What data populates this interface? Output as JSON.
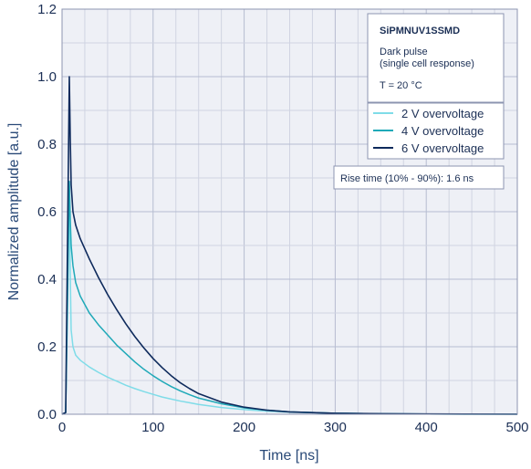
{
  "chart_data": {
    "type": "line",
    "xlabel": "Time [ns]",
    "ylabel": "Normalized amplitude [a.u.]",
    "xlim": [
      0,
      500
    ],
    "ylim": [
      0,
      1.2
    ],
    "x_ticks": [
      0,
      100,
      200,
      300,
      400,
      500
    ],
    "x_tick_labels": [
      "0",
      "100",
      "200",
      "300",
      "400",
      "500"
    ],
    "y_ticks": [
      0,
      0.2,
      0.4,
      0.6,
      0.8,
      1.0,
      1.2
    ],
    "y_tick_labels": [
      "0.0",
      "0.2",
      "0.4",
      "0.6",
      "0.8",
      "1.0",
      "1.2"
    ],
    "grid": true,
    "legend_position": "top-right",
    "info_box": {
      "title": "SiPMNUV1SSMD",
      "line1": "Dark pulse",
      "line2": "(single cell response)",
      "line3": "T = 20 °C"
    },
    "annotation": "Rise time (10% - 90%): 1.6 ns",
    "series": [
      {
        "name": "2 V overvoltage",
        "color": "#7fdce8",
        "points": [
          [
            0,
            0
          ],
          [
            4,
            0.005
          ],
          [
            6,
            0.3
          ],
          [
            8,
            0.68
          ],
          [
            9,
            0.42
          ],
          [
            10,
            0.25
          ],
          [
            12,
            0.2
          ],
          [
            15,
            0.175
          ],
          [
            20,
            0.16
          ],
          [
            30,
            0.14
          ],
          [
            40,
            0.124
          ],
          [
            50,
            0.11
          ],
          [
            60,
            0.098
          ],
          [
            70,
            0.086
          ],
          [
            80,
            0.076
          ],
          [
            90,
            0.067
          ],
          [
            100,
            0.059
          ],
          [
            110,
            0.051
          ],
          [
            120,
            0.045
          ],
          [
            130,
            0.039
          ],
          [
            140,
            0.034
          ],
          [
            150,
            0.029
          ],
          [
            175,
            0.02
          ],
          [
            200,
            0.014
          ],
          [
            225,
            0.009
          ],
          [
            250,
            0.006
          ],
          [
            300,
            0.003
          ],
          [
            350,
            0.0015
          ],
          [
            400,
            0.0008
          ],
          [
            450,
            0.0004
          ],
          [
            500,
            0.0002
          ]
        ]
      },
      {
        "name": "4 V overvoltage",
        "color": "#1fa9b8",
        "points": [
          [
            0,
            0
          ],
          [
            4,
            0.005
          ],
          [
            6,
            0.35
          ],
          [
            8,
            0.69
          ],
          [
            9,
            0.58
          ],
          [
            10,
            0.5
          ],
          [
            12,
            0.44
          ],
          [
            15,
            0.39
          ],
          [
            20,
            0.35
          ],
          [
            30,
            0.3
          ],
          [
            40,
            0.265
          ],
          [
            50,
            0.235
          ],
          [
            60,
            0.205
          ],
          [
            70,
            0.18
          ],
          [
            80,
            0.155
          ],
          [
            90,
            0.133
          ],
          [
            100,
            0.114
          ],
          [
            110,
            0.097
          ],
          [
            120,
            0.082
          ],
          [
            130,
            0.069
          ],
          [
            140,
            0.058
          ],
          [
            150,
            0.048
          ],
          [
            175,
            0.031
          ],
          [
            200,
            0.019
          ],
          [
            225,
            0.012
          ],
          [
            250,
            0.007
          ],
          [
            300,
            0.003
          ],
          [
            350,
            0.0015
          ],
          [
            400,
            0.0008
          ],
          [
            450,
            0.0004
          ],
          [
            500,
            0.0002
          ]
        ]
      },
      {
        "name": "6 V overvoltage",
        "color": "#0e2a5c",
        "points": [
          [
            0,
            0
          ],
          [
            4,
            0.005
          ],
          [
            6,
            0.5
          ],
          [
            8,
            1.0
          ],
          [
            9,
            0.82
          ],
          [
            10,
            0.68
          ],
          [
            12,
            0.6
          ],
          [
            15,
            0.56
          ],
          [
            20,
            0.52
          ],
          [
            30,
            0.46
          ],
          [
            40,
            0.405
          ],
          [
            50,
            0.355
          ],
          [
            60,
            0.31
          ],
          [
            70,
            0.268
          ],
          [
            80,
            0.23
          ],
          [
            90,
            0.196
          ],
          [
            100,
            0.165
          ],
          [
            110,
            0.138
          ],
          [
            120,
            0.114
          ],
          [
            130,
            0.093
          ],
          [
            140,
            0.076
          ],
          [
            150,
            0.061
          ],
          [
            175,
            0.036
          ],
          [
            200,
            0.021
          ],
          [
            225,
            0.012
          ],
          [
            250,
            0.007
          ],
          [
            300,
            0.003
          ],
          [
            350,
            0.0015
          ],
          [
            400,
            0.0008
          ],
          [
            450,
            0.0004
          ],
          [
            500,
            0.0002
          ]
        ]
      }
    ]
  }
}
